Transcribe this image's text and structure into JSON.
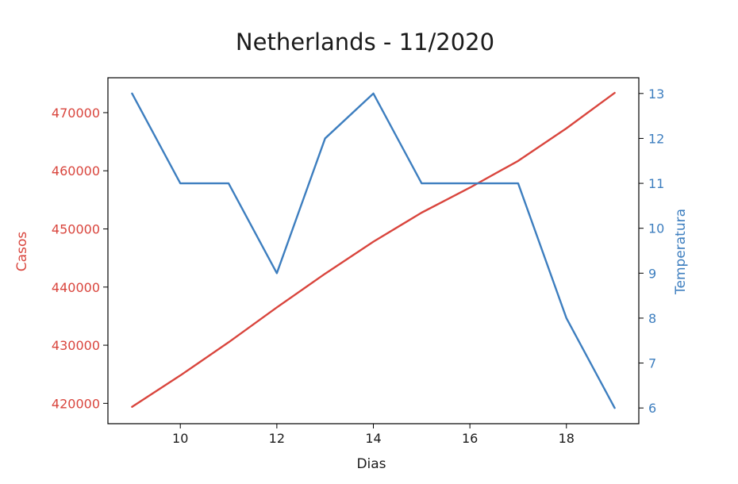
{
  "chart_data": {
    "type": "line",
    "title": "Netherlands - 11/2020",
    "xlabel": "Dias",
    "ylabel_left": "Casos",
    "ylabel_right": "Temperatura",
    "x": [
      9,
      10,
      11,
      12,
      13,
      14,
      15,
      16,
      17,
      18,
      19
    ],
    "xticks": [
      10,
      12,
      14,
      16,
      18
    ],
    "xlim": [
      8.5,
      19.5
    ],
    "left_axis": {
      "ylim": [
        416500,
        476000
      ],
      "ticks": [
        420000,
        430000,
        440000,
        450000,
        460000,
        470000
      ],
      "color": "#d9453d"
    },
    "right_axis": {
      "ylim": [
        5.65,
        13.35
      ],
      "ticks": [
        6,
        7,
        8,
        9,
        10,
        11,
        12,
        13
      ],
      "color": "#3d7ebf"
    },
    "series": [
      {
        "axis": "left",
        "color": "#d9453d",
        "values": [
          419400,
          424800,
          430500,
          436500,
          442300,
          447800,
          452800,
          457100,
          461700,
          467300,
          473400
        ]
      },
      {
        "axis": "right",
        "color": "#3d7ebf",
        "values": [
          13,
          11,
          11,
          9,
          12,
          13,
          11,
          11,
          11,
          8,
          6
        ]
      }
    ],
    "grid": false
  }
}
